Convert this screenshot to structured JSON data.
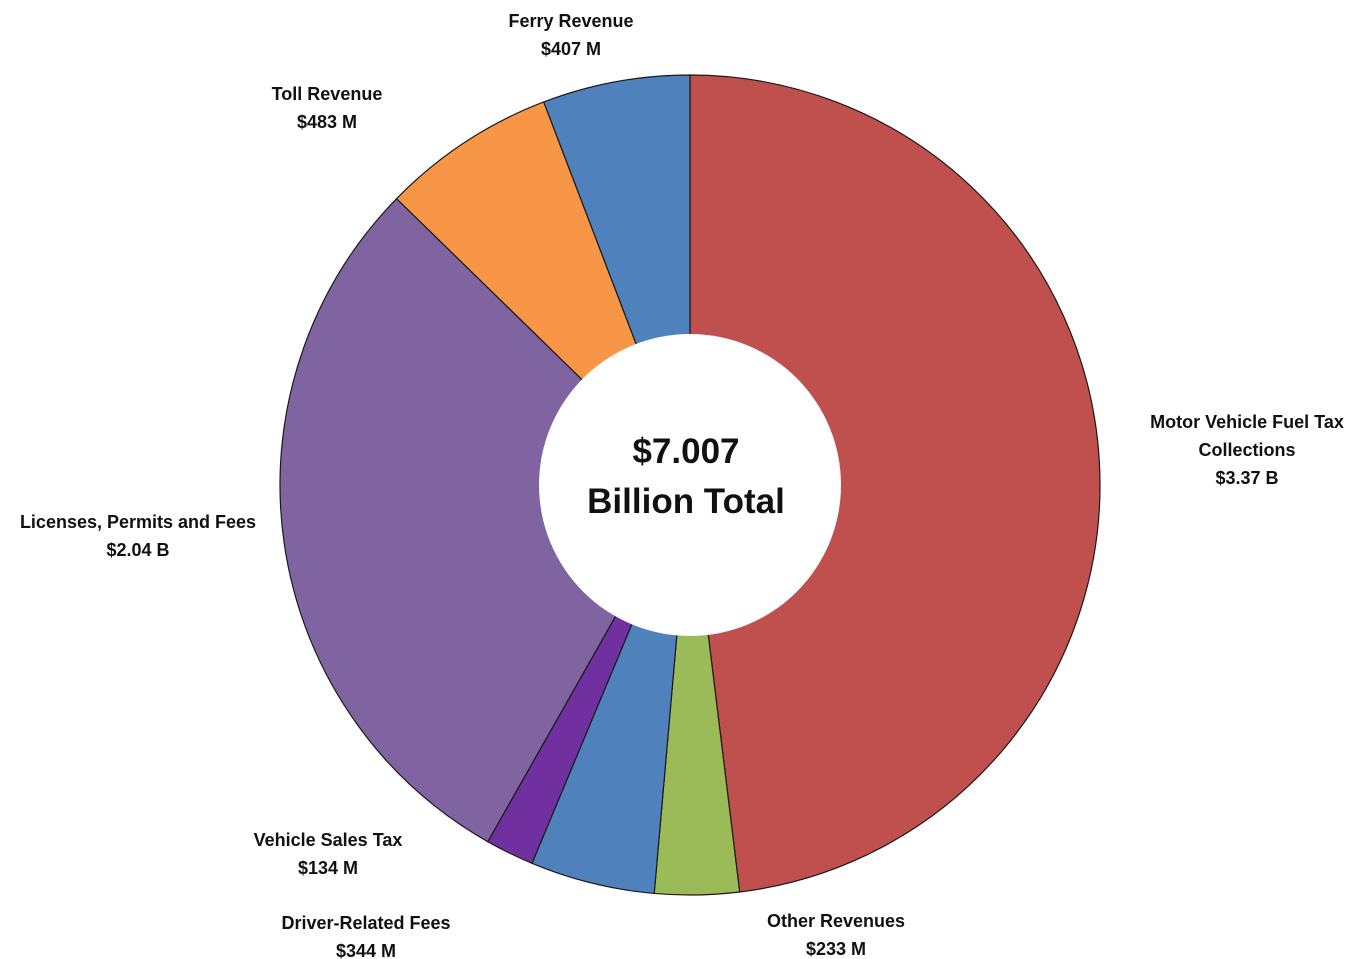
{
  "chart_data": {
    "type": "pie",
    "donut": true,
    "center_label": [
      "$7.007",
      "Billion Total"
    ],
    "slices": [
      {
        "name": "Motor Vehicle Fuel Tax Collections",
        "value": 3370,
        "value_label": "$3.37 B",
        "color": "#c0504d"
      },
      {
        "name": "Other Revenues",
        "value": 233,
        "value_label": "$233 M",
        "color": "#9bbb59"
      },
      {
        "name": "Driver-Related Fees",
        "value": 344,
        "value_label": "$344 M",
        "color": "#4f81bd"
      },
      {
        "name": "Vehicle Sales Tax",
        "value": 134,
        "value_label": "$134 M",
        "color": "#7030a0"
      },
      {
        "name": "Licenses, Permits and Fees",
        "value": 2040,
        "value_label": "$2.04 B",
        "color": "#8064a2"
      },
      {
        "name": "Toll Revenue",
        "value": 483,
        "value_label": "$483 M",
        "color": "#f79646"
      },
      {
        "name": "Ferry Revenue",
        "value": 407,
        "value_label": "$407 M",
        "color": "#4f81bd"
      }
    ],
    "unit": "$ millions",
    "legend": "none"
  }
}
